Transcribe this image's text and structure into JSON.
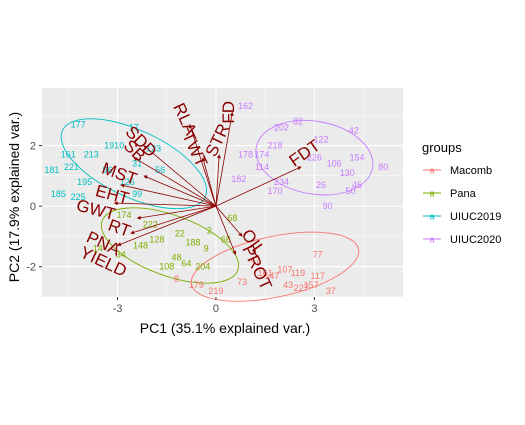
{
  "chart_data": {
    "type": "scatter",
    "subtype": "pca-biplot",
    "title": "",
    "xlabel": "PC1 (35.1% explained var.)",
    "ylabel": "PC2 (17.9% explained var.)",
    "xlim": [
      -5.3,
      5.7
    ],
    "ylim": [
      -3.0,
      3.9
    ],
    "x_ticks": [
      -3,
      0,
      3
    ],
    "y_ticks": [
      -2,
      0,
      2
    ],
    "grid": true,
    "legend_position": "right",
    "legend_title": "groups",
    "groups": [
      {
        "name": "Macomb",
        "color": "#F8766D"
      },
      {
        "name": "Pana",
        "color": "#7CAE00"
      },
      {
        "name": "UIUC2019",
        "color": "#00BFC4"
      },
      {
        "name": "UIUC2020",
        "color": "#C77CFF"
      }
    ],
    "ellipses": [
      {
        "group": "Macomb",
        "center": [
          1.8,
          -2.0
        ],
        "rx": 2.6,
        "ry": 1.0,
        "angle": 12
      },
      {
        "group": "Pana",
        "center": [
          -1.4,
          -1.3
        ],
        "rx": 2.2,
        "ry": 1.0,
        "angle": -20
      },
      {
        "group": "UIUC2019",
        "center": [
          -2.5,
          1.4
        ],
        "rx": 2.4,
        "ry": 1.1,
        "angle": -25
      },
      {
        "group": "UIUC2020",
        "center": [
          3.0,
          1.6
        ],
        "rx": 1.8,
        "ry": 1.2,
        "angle": -10
      }
    ],
    "points": [
      {
        "g": "Macomb",
        "label": "77",
        "x": 3.1,
        "y": -1.6
      },
      {
        "g": "Macomb",
        "label": "117",
        "x": 3.1,
        "y": -2.3
      },
      {
        "g": "Macomb",
        "label": "157",
        "x": 2.9,
        "y": -2.6
      },
      {
        "g": "Macomb",
        "label": "37",
        "x": 3.5,
        "y": -2.8
      },
      {
        "g": "Macomb",
        "label": "227",
        "x": 2.6,
        "y": -2.7
      },
      {
        "g": "Macomb",
        "label": "43",
        "x": 2.2,
        "y": -2.6
      },
      {
        "g": "Macomb",
        "label": "179",
        "x": -0.6,
        "y": -2.6
      },
      {
        "g": "Macomb",
        "label": "219",
        "x": 0.0,
        "y": -2.8
      },
      {
        "g": "Macomb",
        "label": "8",
        "x": -1.2,
        "y": -2.4
      },
      {
        "g": "Macomb",
        "label": "161",
        "x": 1.5,
        "y": -2.2
      },
      {
        "g": "Macomb",
        "label": "107",
        "x": 2.1,
        "y": -2.1
      },
      {
        "g": "Macomb",
        "label": "147",
        "x": 1.7,
        "y": -2.3
      },
      {
        "g": "Macomb",
        "label": "47",
        "x": 1.2,
        "y": -1.8
      },
      {
        "g": "Macomb",
        "label": "73",
        "x": 0.8,
        "y": -2.5
      },
      {
        "g": "Macomb",
        "label": "119",
        "x": 2.5,
        "y": -2.2
      },
      {
        "g": "Pana",
        "label": "68",
        "x": 0.5,
        "y": -0.4
      },
      {
        "g": "Pana",
        "label": "68",
        "x": 0.3,
        "y": -1.1
      },
      {
        "g": "Pana",
        "label": "9",
        "x": -0.3,
        "y": -1.4
      },
      {
        "g": "Pana",
        "label": "174",
        "x": -2.8,
        "y": -0.3
      },
      {
        "g": "Pana",
        "label": "222",
        "x": -2.0,
        "y": -0.6
      },
      {
        "g": "Pana",
        "label": "14",
        "x": -3.6,
        "y": -1.4
      },
      {
        "g": "Pana",
        "label": "34",
        "x": -2.9,
        "y": -1.6
      },
      {
        "g": "Pana",
        "label": "128",
        "x": -1.8,
        "y": -1.1
      },
      {
        "g": "Pana",
        "label": "48",
        "x": -1.2,
        "y": -1.7
      },
      {
        "g": "Pana",
        "label": "188",
        "x": -0.7,
        "y": -1.2
      },
      {
        "g": "Pana",
        "label": "108",
        "x": -1.5,
        "y": -2.0
      },
      {
        "g": "Pana",
        "label": "64",
        "x": -0.9,
        "y": -1.9
      },
      {
        "g": "Pana",
        "label": "148",
        "x": -2.3,
        "y": -1.3
      },
      {
        "g": "Pana",
        "label": "22",
        "x": -1.1,
        "y": -0.9
      },
      {
        "g": "Pana",
        "label": "204",
        "x": -0.4,
        "y": -2.0
      },
      {
        "g": "Pana",
        "label": "2",
        "x": -0.2,
        "y": -0.8
      },
      {
        "g": "UIUC2019",
        "label": "177",
        "x": -4.2,
        "y": 2.7
      },
      {
        "g": "UIUC2019",
        "label": "17",
        "x": -2.5,
        "y": 2.6
      },
      {
        "g": "UIUC2019",
        "label": "161",
        "x": -4.5,
        "y": 1.7
      },
      {
        "g": "UIUC2019",
        "label": "181",
        "x": -5.0,
        "y": 1.2
      },
      {
        "g": "UIUC2019",
        "label": "185",
        "x": -4.8,
        "y": 0.4
      },
      {
        "g": "UIUC2019",
        "label": "225",
        "x": -4.2,
        "y": 0.3
      },
      {
        "g": "UIUC2019",
        "label": "195",
        "x": -4.0,
        "y": 0.8
      },
      {
        "g": "UIUC2019",
        "label": "221",
        "x": -4.4,
        "y": 1.3
      },
      {
        "g": "UIUC2019",
        "label": "213",
        "x": -3.8,
        "y": 1.7
      },
      {
        "g": "UIUC2019",
        "label": "1910",
        "x": -3.1,
        "y": 2.0
      },
      {
        "g": "UIUC2019",
        "label": "31",
        "x": -2.4,
        "y": 1.4
      },
      {
        "g": "UIUC2019",
        "label": "126",
        "x": -2.7,
        "y": 0.8
      },
      {
        "g": "UIUC2019",
        "label": "96",
        "x": -3.3,
        "y": 1.2
      },
      {
        "g": "UIUC2019",
        "label": "56",
        "x": -1.7,
        "y": 1.2
      },
      {
        "g": "UIUC2019",
        "label": "99",
        "x": -2.4,
        "y": 0.4
      },
      {
        "g": "UIUC2019",
        "label": "123",
        "x": -1.9,
        "y": 1.9
      },
      {
        "g": "UIUC2020",
        "label": "162",
        "x": 0.9,
        "y": 3.3
      },
      {
        "g": "UIUC2020",
        "label": "82",
        "x": 2.5,
        "y": 2.8
      },
      {
        "g": "UIUC2020",
        "label": "202",
        "x": 2.0,
        "y": 2.6
      },
      {
        "g": "UIUC2020",
        "label": "42",
        "x": 4.2,
        "y": 2.5
      },
      {
        "g": "UIUC2020",
        "label": "122",
        "x": 3.2,
        "y": 2.2
      },
      {
        "g": "UIUC2020",
        "label": "178",
        "x": 0.9,
        "y": 1.7
      },
      {
        "g": "UIUC2020",
        "label": "174",
        "x": 1.4,
        "y": 1.7
      },
      {
        "g": "UIUC2020",
        "label": "218",
        "x": 1.8,
        "y": 2.0
      },
      {
        "g": "UIUC2020",
        "label": "80",
        "x": 5.1,
        "y": 1.3
      },
      {
        "g": "UIUC2020",
        "label": "46",
        "x": 4.3,
        "y": 0.7
      },
      {
        "g": "UIUC2020",
        "label": "50",
        "x": 4.1,
        "y": 0.5
      },
      {
        "g": "UIUC2020",
        "label": "90",
        "x": 3.4,
        "y": 0.0
      },
      {
        "g": "UIUC2020",
        "label": "170",
        "x": 1.8,
        "y": 0.5
      },
      {
        "g": "UIUC2020",
        "label": "182",
        "x": 0.7,
        "y": 0.9
      },
      {
        "g": "UIUC2020",
        "label": "130",
        "x": 4.0,
        "y": 1.1
      },
      {
        "g": "UIUC2020",
        "label": "234",
        "x": 2.0,
        "y": 0.8
      },
      {
        "g": "UIUC2020",
        "label": "154",
        "x": 4.3,
        "y": 1.6
      },
      {
        "g": "UIUC2020",
        "label": "106",
        "x": 3.6,
        "y": 1.4
      },
      {
        "g": "UIUC2020",
        "label": "226",
        "x": 3.0,
        "y": 1.6
      },
      {
        "g": "UIUC2020",
        "label": "114",
        "x": 1.4,
        "y": 1.3
      },
      {
        "g": "UIUC2020",
        "label": "26",
        "x": 3.2,
        "y": 0.7
      }
    ],
    "loadings": [
      {
        "name": "FD",
        "x": 0.5,
        "y": 3.1,
        "lx": 0.55,
        "ly": 3.1,
        "rot": -90
      },
      {
        "name": "RLA",
        "x": -0.8,
        "y": 2.7,
        "lx": -1.1,
        "ly": 2.8,
        "rot": 65
      },
      {
        "name": "TWT",
        "x": -0.4,
        "y": 1.6,
        "lx": -0.8,
        "ly": 1.8,
        "rot": 65
      },
      {
        "name": "STR",
        "x": 0.1,
        "y": 1.7,
        "lx": 0.2,
        "ly": 2.1,
        "rot": -65
      },
      {
        "name": "SDD",
        "x": -2.2,
        "y": 2.0,
        "lx": -2.4,
        "ly": 2.0,
        "rot": 45
      },
      {
        "name": "SB",
        "x": -2.5,
        "y": 1.6,
        "lx": -2.6,
        "ly": 1.7,
        "rot": 45
      },
      {
        "name": "MST",
        "x": -2.2,
        "y": 1.0,
        "lx": -3.0,
        "ly": 0.9,
        "rot": 20
      },
      {
        "name": "EHT",
        "x": -2.9,
        "y": 0.7,
        "lx": -3.2,
        "ly": 0.2,
        "rot": 15
      },
      {
        "name": "GWT",
        "x": -3.1,
        "y": 0.1,
        "lx": -3.7,
        "ly": -0.3,
        "rot": 15
      },
      {
        "name": "RT",
        "x": -2.4,
        "y": -0.4,
        "lx": -3.0,
        "ly": -0.9,
        "rot": 20
      },
      {
        "name": "PNA",
        "x": -2.6,
        "y": -0.9,
        "lx": -3.5,
        "ly": -1.4,
        "rot": 25
      },
      {
        "name": "YIELD",
        "x": -3.0,
        "y": -1.3,
        "lx": -3.5,
        "ly": -2.0,
        "rot": 25
      },
      {
        "name": "FDT",
        "x": 2.6,
        "y": 1.3,
        "lx": 2.8,
        "ly": 1.6,
        "rot": -35
      },
      {
        "name": "OIL",
        "x": 0.8,
        "y": -1.0,
        "lx": 1.0,
        "ly": -1.3,
        "rot": 55
      },
      {
        "name": "PROT",
        "x": 0.6,
        "y": -1.6,
        "lx": 1.1,
        "ly": -2.1,
        "rot": 65
      }
    ]
  }
}
